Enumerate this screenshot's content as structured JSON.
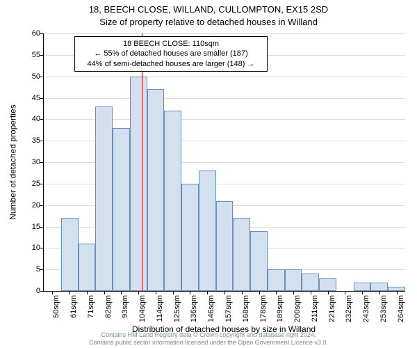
{
  "chart": {
    "type": "histogram",
    "title_main": "18, BEECH CLOSE, WILLAND, CULLOMPTON, EX15 2SD",
    "title_sub": "Size of property relative to detached houses in Willand",
    "ylabel": "Number of detached properties",
    "xlabel": "Distribution of detached houses by size in Willand",
    "background_color": "#ffffff",
    "bar_fill": "#d2e0f0",
    "bar_border": "#6b8fb8",
    "grid_color": "#dddddd",
    "marker_color": "#dd1111",
    "ylim": [
      0,
      60
    ],
    "ytick_step": 5,
    "title_fontsize": 13,
    "label_fontsize": 12,
    "tick_fontsize": 11,
    "x_categories": [
      "50sqm",
      "61sqm",
      "71sqm",
      "82sqm",
      "93sqm",
      "104sqm",
      "114sqm",
      "125sqm",
      "136sqm",
      "146sqm",
      "157sqm",
      "168sqm",
      "178sqm",
      "189sqm",
      "200sqm",
      "211sqm",
      "221sqm",
      "232sqm",
      "243sqm",
      "253sqm",
      "264sqm"
    ],
    "values": [
      0,
      17,
      11,
      43,
      38,
      50,
      47,
      42,
      25,
      28,
      21,
      17,
      14,
      5,
      5,
      4,
      3,
      0,
      2,
      2,
      1
    ],
    "marker_x_index": 5.7,
    "callout": {
      "line1": "18 BEECH CLOSE: 110sqm",
      "line2": "← 55% of detached houses are smaller (187)",
      "line3": "44% of semi-detached houses are larger (148) →"
    }
  },
  "footer": {
    "line1": "Contains HM Land Registry data © Crown copyright and database right 2024.",
    "line2": "Contains public sector information licensed under the Open Government Licence v3.0."
  }
}
